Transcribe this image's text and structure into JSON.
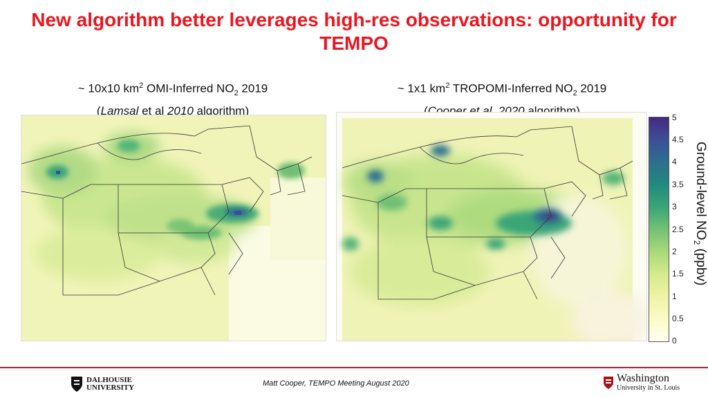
{
  "title": "New algorithm better leverages high-res observations: opportunity for TEMPO",
  "left_caption": {
    "prefix": "~ 10x10 km",
    "sup": "2",
    "middle": " OMI-Inferred NO",
    "sub": "2",
    "suffix": " 2019",
    "line2_open": "(",
    "line2_author": "Lamsal",
    "line2_mid": " et al ",
    "line2_year": "2010",
    "line2_end": " algorithm)"
  },
  "right_caption": {
    "prefix": "~ 1x1 km",
    "sup": "2",
    "middle": " TROPOMI-Inferred NO",
    "sub": "2",
    "suffix": " 2019",
    "line2_open": "(",
    "line2_author": "Cooper et al. 2020",
    "line2_end": " algorithm)"
  },
  "colorbar": {
    "ticks": [
      "0",
      "0.5",
      "1",
      "1.5",
      "2",
      "2.5",
      "3",
      "3.5",
      "4",
      "4.5",
      "5"
    ],
    "label_main": "Ground-level NO",
    "label_sub": "2",
    "label_unit": " (ppbv)",
    "colors": [
      "#fffff0",
      "#eef3a6",
      "#a9d97a",
      "#3aa578",
      "#2c6f8d",
      "#452a7c"
    ]
  },
  "footer": {
    "credit": "Matt Cooper, TEMPO Meeting August 2020",
    "left_logo_line1": "DALHOUSIE",
    "left_logo_line2": "UNIVERSITY",
    "right_logo_line1": "Washington",
    "right_logo_line2": "University in St. Louis"
  }
}
